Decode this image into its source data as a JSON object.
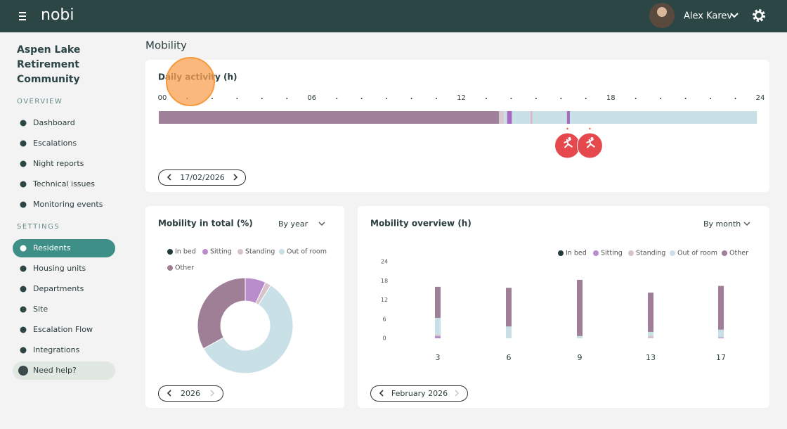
{
  "header": {
    "logo": "nobi",
    "user": "Alex Karev"
  },
  "sidebar": {
    "organization": "Aspen Lake Retirement Community",
    "sections": [
      {
        "title": "OVERVIEW",
        "items": [
          "Dashboard",
          "Escalations",
          "Night reports",
          "Technical issues",
          "Monitoring events"
        ]
      },
      {
        "title": "SETTINGS",
        "items": [
          "Residents",
          "Housing units",
          "Departments",
          "Site",
          "Escalation Flow",
          "Integrations"
        ]
      }
    ],
    "help": "Need help?"
  },
  "page_title": "Mobility",
  "controls": {
    "daily_activity": {
      "date": "17/02/2026"
    },
    "mobility_total": {
      "period_filter": "By year",
      "period": "2026"
    },
    "mobility_overview": {
      "period_filter": "By month",
      "period": "February 2026"
    }
  },
  "chart_data": [
    {
      "type": "timeline",
      "title": "Daily activity (h)",
      "xlim": [
        0,
        24
      ],
      "xticks": [
        {
          "value": 0,
          "label": "00"
        },
        {
          "value": 6,
          "label": "06"
        },
        12,
        18,
        24
      ],
      "minor_xticks": [
        1,
        2,
        3,
        4,
        5,
        7,
        8,
        9,
        10,
        11,
        13,
        14,
        15,
        16,
        17,
        19,
        20,
        21,
        22,
        23
      ],
      "segments": [
        {
          "start": 0,
          "end": 13.65,
          "color": "#a0819a"
        },
        {
          "start": 13.65,
          "end": 13.85,
          "color": "#d9c8d0"
        },
        {
          "start": 13.85,
          "end": 13.98,
          "color": "#c9e0e6"
        },
        {
          "start": 13.98,
          "end": 14.17,
          "color": "#a76cc0"
        },
        {
          "start": 14.17,
          "end": 14.92,
          "color": "#c9e0e6"
        },
        {
          "start": 14.92,
          "end": 15.0,
          "color": "#dcb6c6"
        },
        {
          "start": 15.0,
          "end": 16.38,
          "color": "#c9e0e6"
        },
        {
          "start": 16.38,
          "end": 16.5,
          "color": "#a76cc0"
        },
        {
          "start": 16.5,
          "end": 24,
          "color": "#c9e0e6"
        }
      ],
      "events": [
        16.4,
        17.3
      ],
      "event_color": "#e5484d"
    },
    {
      "type": "donut",
      "title": "Mobility in total (%)",
      "categories": [
        "In bed",
        "Sitting",
        "Standing",
        "Out of room",
        "Other"
      ],
      "values": [
        0,
        7,
        2,
        58,
        33
      ],
      "colors": [
        "#1f3a3a",
        "#b98ccc",
        "#d8c3cc",
        "#c9e0e6",
        "#9e7f96"
      ]
    },
    {
      "type": "stacked_bar",
      "title": "Mobility overview (h)",
      "categories": [
        "3",
        "6",
        "9",
        "13",
        "17"
      ],
      "series": [
        {
          "name": "In bed",
          "color": "#1f3a3a",
          "values": [
            0,
            0,
            0,
            0,
            0
          ]
        },
        {
          "name": "Sitting",
          "color": "#b98ccc",
          "values": [
            0.7,
            0,
            0,
            0,
            0.3
          ]
        },
        {
          "name": "Standing",
          "color": "#d8c3cc",
          "values": [
            0.4,
            0,
            0,
            0.7,
            0
          ]
        },
        {
          "name": "Out of room",
          "color": "#c9e0e6",
          "values": [
            5.3,
            3.7,
            0.7,
            1.3,
            2.4
          ]
        },
        {
          "name": "Other",
          "color": "#9e7f96",
          "values": [
            9.7,
            12.1,
            17.6,
            12.3,
            13.7
          ]
        }
      ],
      "ylim": [
        0,
        24
      ],
      "yticks": [
        0,
        6,
        12,
        18,
        24
      ]
    }
  ]
}
